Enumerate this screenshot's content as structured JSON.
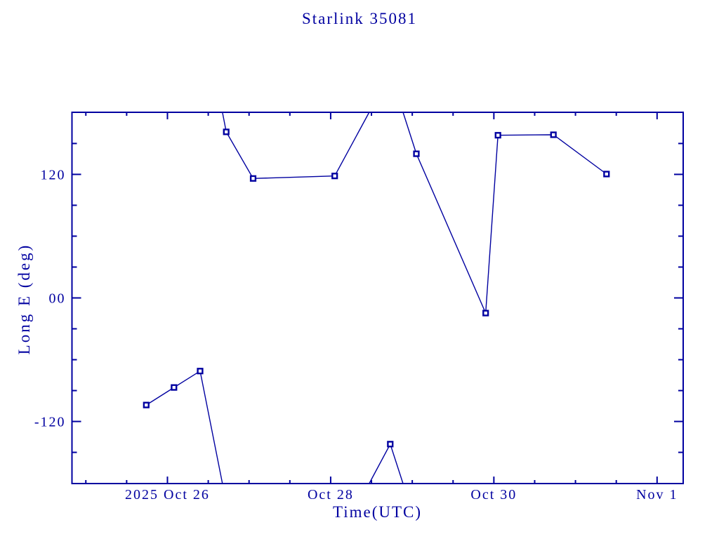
{
  "title": "Starlink 35081",
  "colors": {
    "ink": "#0000a0",
    "background": "#ffffff"
  },
  "chart_data": {
    "type": "line",
    "title": "Starlink 35081",
    "xlabel": "Time(UTC)",
    "ylabel": "Long E (deg)",
    "legend": "none",
    "grid": false,
    "line_color": "#0000a0",
    "marker": "open-square",
    "x_unit": "days since 2025 Oct 26 00:00 UTC",
    "xlim": [
      -1.17,
      6.32
    ],
    "ylim": [
      -180.3,
      180.3
    ],
    "wrap_degrees": 360,
    "x_major_ticks": [
      {
        "t": 0,
        "label": "2025 Oct 26"
      },
      {
        "t": 2,
        "label": "Oct 28"
      },
      {
        "t": 4,
        "label": "Oct 30"
      },
      {
        "t": 6,
        "label": "Nov  1"
      }
    ],
    "x_minor_step": 0.5,
    "y_major_ticks": [
      {
        "v": 120,
        "label": "120"
      },
      {
        "v": 0,
        "label": "00"
      },
      {
        "v": -120,
        "label": "-120"
      }
    ],
    "y_minor_step": 30,
    "points": [
      {
        "t": -0.26,
        "deg": -104.0
      },
      {
        "t": 0.08,
        "deg": -87.0
      },
      {
        "t": 0.4,
        "deg": -71.0
      },
      {
        "t": 0.72,
        "deg": 161.3
      },
      {
        "t": 1.05,
        "deg": 116.0
      },
      {
        "t": 2.05,
        "deg": 118.5
      },
      {
        "t": 2.73,
        "deg": -142.0
      },
      {
        "t": 3.05,
        "deg": 140.0
      },
      {
        "t": 3.9,
        "deg": -14.7
      },
      {
        "t": 4.05,
        "deg": 158.0
      },
      {
        "t": 4.73,
        "deg": 158.5
      },
      {
        "t": 5.38,
        "deg": 120.3
      }
    ]
  }
}
